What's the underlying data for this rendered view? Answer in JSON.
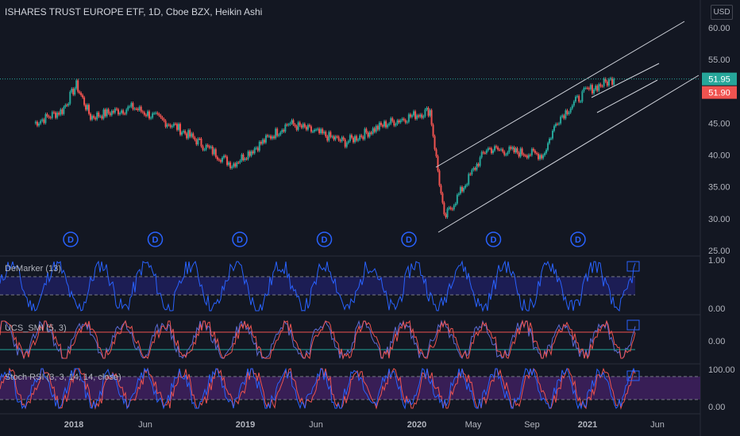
{
  "header": {
    "title": "ISHARES TRUST EUROPE ETF, 1D, Cboe BZX, Heikin Ashi",
    "currency": "USD"
  },
  "panes": {
    "demarker": "DeMarker (13)",
    "smi": "UCS_SMI (5, 3)",
    "stoch": "Stoch RSI (3, 3, 14, 14, close)"
  },
  "price_axis": [
    "60.00",
    "55.00",
    "50.00",
    "45.00",
    "40.00",
    "35.00",
    "30.00",
    "25.00"
  ],
  "price_badges": {
    "last": "51.95",
    "prev": "51.90"
  },
  "indicator_axis": {
    "demarker": [
      "1.00",
      "0.00"
    ],
    "smi": [
      "0.00"
    ],
    "stoch": [
      "100.00",
      "0.00"
    ]
  },
  "time_axis": [
    "2018",
    "Jun",
    "2019",
    "Jun",
    "2020",
    "May",
    "Sep",
    "2021",
    "Jun"
  ],
  "dividend_marker": "D",
  "colors": {
    "up": "#26a69a",
    "down": "#ef5350",
    "background": "#131722",
    "last_price": "#26a69a",
    "prev_price": "#ef5350",
    "demarker_line": "#2962ff",
    "demarker_band": "#1e1e5a",
    "smi_line": "#ef5350",
    "smi_signal": "#5b6bd5",
    "stoch_k": "#2962ff",
    "stoch_d": "#ef5350",
    "stoch_band": "#3d1f5c"
  },
  "chart_data": {
    "type": "candlestick",
    "title": "ISHARES TRUST EUROPE ETF, 1D, Cboe BZX, Heikin Ashi",
    "y_range": [
      25,
      62
    ],
    "key_points": [
      {
        "x": "2017-10",
        "y": 45.0
      },
      {
        "x": "2017-12",
        "y": 47.0
      },
      {
        "x": "2018-01",
        "y": 51.0
      },
      {
        "x": "2018-02",
        "y": 46.0
      },
      {
        "x": "2018-05",
        "y": 47.5
      },
      {
        "x": "2018-08",
        "y": 44.5
      },
      {
        "x": "2018-12",
        "y": 38.5
      },
      {
        "x": "2019-04",
        "y": 45.0
      },
      {
        "x": "2019-08",
        "y": 42.0
      },
      {
        "x": "2019-11",
        "y": 45.0
      },
      {
        "x": "2020-02",
        "y": 47.0
      },
      {
        "x": "2020-03",
        "y": 30.0
      },
      {
        "x": "2020-06",
        "y": 41.0
      },
      {
        "x": "2020-10",
        "y": 40.0
      },
      {
        "x": "2020-11",
        "y": 45.5
      },
      {
        "x": "2021-01",
        "y": 50.0
      },
      {
        "x": "2021-03",
        "y": 51.95
      }
    ],
    "last_price": 51.95,
    "prev_close": 51.9,
    "dividend_markers": [
      "2017-12",
      "2018-06",
      "2018-12",
      "2019-06",
      "2019-12",
      "2020-06",
      "2020-12"
    ],
    "trend_channel": "rising channel from 2020-03 low to 2021-03"
  }
}
